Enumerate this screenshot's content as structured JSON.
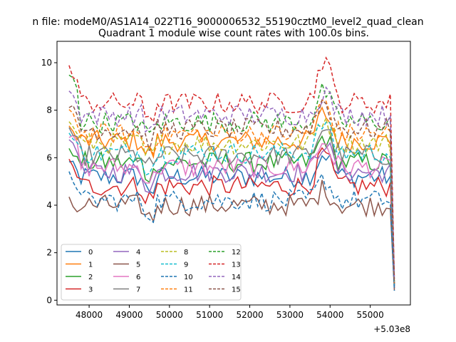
{
  "suptitle": "n file: modeM0/AS1A14_022T16_9000006532_55190cztM0_level2_quad_clean",
  "chart_data": {
    "type": "line",
    "title": "Quadrant 1 module wise count rates with 100.0s bins.",
    "xlabel": "",
    "ylabel": "",
    "x_offset_label": "+5.03e8",
    "x_offset": 503000000,
    "xlim": [
      47200,
      56000
    ],
    "ylim": [
      -0.2,
      10.9
    ],
    "x_ticks": [
      48000,
      49000,
      50000,
      51000,
      52000,
      53000,
      54000,
      55000
    ],
    "x_tick_labels": [
      "48000",
      "49000",
      "50000",
      "51000",
      "52000",
      "53000",
      "54000",
      "55000"
    ],
    "y_ticks": [
      0,
      2,
      4,
      6,
      8,
      10
    ],
    "y_tick_labels": [
      "0",
      "2",
      "4",
      "6",
      "8",
      "10"
    ],
    "grid": false,
    "legend": {
      "position": "lower-left",
      "columns": 4
    },
    "x_start": 47500,
    "x_step": 100,
    "series": [
      {
        "name": "0",
        "color": "#1f77b4",
        "dash": "solid",
        "start": 5.9,
        "base": 5.2,
        "flare": 1.0,
        "end": 0.5
      },
      {
        "name": "1",
        "color": "#ff7f0e",
        "dash": "solid",
        "start": 7.3,
        "base": 6.7,
        "flare": 1.2,
        "end": 0.6
      },
      {
        "name": "2",
        "color": "#2ca02c",
        "dash": "solid",
        "start": 6.4,
        "base": 5.8,
        "flare": 1.1,
        "end": 0.6
      },
      {
        "name": "3",
        "color": "#d62728",
        "dash": "solid",
        "start": 5.8,
        "base": 4.8,
        "flare": 1.4,
        "end": 0.5
      },
      {
        "name": "4",
        "color": "#9467bd",
        "dash": "solid",
        "start": 6.9,
        "base": 5.4,
        "flare": 1.3,
        "end": 0.6
      },
      {
        "name": "5",
        "color": "#8c564b",
        "dash": "solid",
        "start": 4.2,
        "base": 4.0,
        "flare": 0.7,
        "end": 0.4
      },
      {
        "name": "6",
        "color": "#e377c2",
        "dash": "solid",
        "start": 7.0,
        "base": 5.6,
        "flare": 1.1,
        "end": 0.6
      },
      {
        "name": "7",
        "color": "#7f7f7f",
        "dash": "solid",
        "start": 7.2,
        "base": 6.1,
        "flare": 1.2,
        "end": 0.6
      },
      {
        "name": "8",
        "color": "#bcbd22",
        "dash": "dashed",
        "start": 7.6,
        "base": 6.6,
        "flare": 1.1,
        "end": 0.7
      },
      {
        "name": "9",
        "color": "#17becf",
        "dash": "dashed",
        "start": 7.0,
        "base": 6.2,
        "flare": 1.3,
        "end": 0.6
      },
      {
        "name": "10",
        "color": "#1f77b4",
        "dash": "dashed",
        "start": 5.3,
        "base": 4.2,
        "flare": 0.9,
        "end": 0.4
      },
      {
        "name": "11",
        "color": "#ff7f0e",
        "dash": "dashed",
        "start": 8.0,
        "base": 7.0,
        "flare": 1.4,
        "end": 0.7
      },
      {
        "name": "12",
        "color": "#2ca02c",
        "dash": "dashed",
        "start": 9.5,
        "base": 7.5,
        "flare": 1.3,
        "end": 0.8
      },
      {
        "name": "13",
        "color": "#d62728",
        "dash": "dashed",
        "start": 9.8,
        "base": 8.3,
        "flare": 1.9,
        "end": 0.9
      },
      {
        "name": "14",
        "color": "#9467bd",
        "dash": "dashed",
        "start": 8.9,
        "base": 7.8,
        "flare": 1.0,
        "end": 0.8
      },
      {
        "name": "15",
        "color": "#8c564b",
        "dash": "dashed",
        "start": 8.3,
        "base": 7.2,
        "flare": 1.2,
        "end": 0.7
      }
    ]
  }
}
